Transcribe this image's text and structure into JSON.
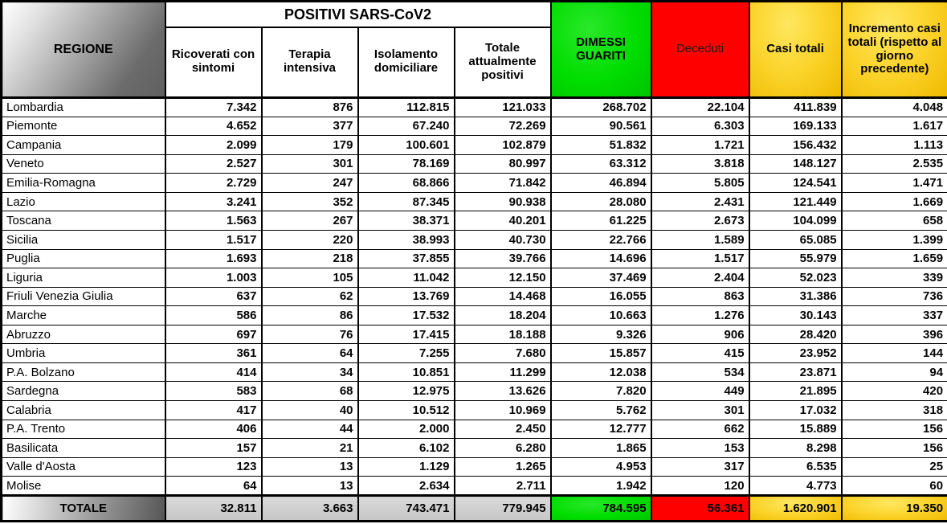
{
  "colors": {
    "green": "#00dd00",
    "red": "#ff0000",
    "gold_light": "#ffe760",
    "gold": "#fbd42c",
    "gold_dark": "#efba00",
    "gray_dark": "#565656",
    "silver": "#c6c6c6",
    "border": "#000000",
    "deceduti_text": "#1a1a1a"
  },
  "chart_data": {
    "type": "table",
    "title": "POSITIVI SARS-CoV2",
    "headers": {
      "regione": "REGIONE",
      "positivi_group": "POSITIVI SARS-CoV2",
      "sub": [
        "Ricoverati con sintomi",
        "Terapia intensiva",
        "Isolamento domiciliare",
        "Totale attualmente positivi"
      ],
      "dimessi": "DIMESSI GUARITI",
      "deceduti": "Deceduti",
      "casi_totali": "Casi totali",
      "incremento": "Incremento casi totali (rispetto al giorno precedente)"
    },
    "rows": [
      {
        "region": "Lombardia",
        "values": [
          "7.342",
          "876",
          "112.815",
          "121.033",
          "268.702",
          "22.104",
          "411.839",
          "4.048"
        ]
      },
      {
        "region": "Piemonte",
        "values": [
          "4.652",
          "377",
          "67.240",
          "72.269",
          "90.561",
          "6.303",
          "169.133",
          "1.617"
        ]
      },
      {
        "region": "Campania",
        "values": [
          "2.099",
          "179",
          "100.601",
          "102.879",
          "51.832",
          "1.721",
          "156.432",
          "1.113"
        ]
      },
      {
        "region": "Veneto",
        "values": [
          "2.527",
          "301",
          "78.169",
          "80.997",
          "63.312",
          "3.818",
          "148.127",
          "2.535"
        ]
      },
      {
        "region": "Emilia-Romagna",
        "values": [
          "2.729",
          "247",
          "68.866",
          "71.842",
          "46.894",
          "5.805",
          "124.541",
          "1.471"
        ]
      },
      {
        "region": "Lazio",
        "values": [
          "3.241",
          "352",
          "87.345",
          "90.938",
          "28.080",
          "2.431",
          "121.449",
          "1.669"
        ]
      },
      {
        "region": "Toscana",
        "values": [
          "1.563",
          "267",
          "38.371",
          "40.201",
          "61.225",
          "2.673",
          "104.099",
          "658"
        ]
      },
      {
        "region": "Sicilia",
        "values": [
          "1.517",
          "220",
          "38.993",
          "40.730",
          "22.766",
          "1.589",
          "65.085",
          "1.399"
        ]
      },
      {
        "region": "Puglia",
        "values": [
          "1.693",
          "218",
          "37.855",
          "39.766",
          "14.696",
          "1.517",
          "55.979",
          "1.659"
        ]
      },
      {
        "region": "Liguria",
        "values": [
          "1.003",
          "105",
          "11.042",
          "12.150",
          "37.469",
          "2.404",
          "52.023",
          "339"
        ]
      },
      {
        "region": "Friuli Venezia Giulia",
        "values": [
          "637",
          "62",
          "13.769",
          "14.468",
          "16.055",
          "863",
          "31.386",
          "736"
        ]
      },
      {
        "region": "Marche",
        "values": [
          "586",
          "86",
          "17.532",
          "18.204",
          "10.663",
          "1.276",
          "30.143",
          "337"
        ]
      },
      {
        "region": "Abruzzo",
        "values": [
          "697",
          "76",
          "17.415",
          "18.188",
          "9.326",
          "906",
          "28.420",
          "396"
        ]
      },
      {
        "region": "Umbria",
        "values": [
          "361",
          "64",
          "7.255",
          "7.680",
          "15.857",
          "415",
          "23.952",
          "144"
        ]
      },
      {
        "region": "P.A. Bolzano",
        "values": [
          "414",
          "34",
          "10.851",
          "11.299",
          "12.038",
          "534",
          "23.871",
          "94"
        ]
      },
      {
        "region": "Sardegna",
        "values": [
          "583",
          "68",
          "12.975",
          "13.626",
          "7.820",
          "449",
          "21.895",
          "420"
        ]
      },
      {
        "region": "Calabria",
        "values": [
          "417",
          "40",
          "10.512",
          "10.969",
          "5.762",
          "301",
          "17.032",
          "318"
        ]
      },
      {
        "region": "P.A. Trento",
        "values": [
          "406",
          "44",
          "2.000",
          "2.450",
          "12.777",
          "662",
          "15.889",
          "156"
        ]
      },
      {
        "region": "Basilicata",
        "values": [
          "157",
          "21",
          "6.102",
          "6.280",
          "1.865",
          "153",
          "8.298",
          "156"
        ]
      },
      {
        "region": "Valle d'Aosta",
        "values": [
          "123",
          "13",
          "1.129",
          "1.265",
          "4.953",
          "317",
          "6.535",
          "25"
        ]
      },
      {
        "region": "Molise",
        "values": [
          "64",
          "13",
          "2.634",
          "2.711",
          "1.942",
          "120",
          "4.773",
          "60"
        ]
      }
    ],
    "total": {
      "label": "TOTALE",
      "values": [
        "32.811",
        "3.663",
        "743.471",
        "779.945",
        "784.595",
        "56.361",
        "1.620.901",
        "19.350"
      ]
    }
  }
}
